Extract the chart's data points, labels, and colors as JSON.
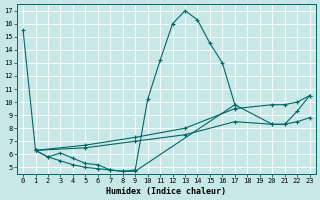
{
  "xlabel": "Humidex (Indice chaleur)",
  "bg_color": "#c8e8e8",
  "grid_color": "#b0d0d0",
  "line_color": "#006666",
  "xlim": [
    -0.5,
    23.5
  ],
  "ylim": [
    4.5,
    17.5
  ],
  "xticks": [
    0,
    1,
    2,
    3,
    4,
    5,
    6,
    7,
    8,
    9,
    10,
    11,
    12,
    13,
    14,
    15,
    16,
    17,
    18,
    19,
    20,
    21,
    22,
    23
  ],
  "yticks": [
    5,
    6,
    7,
    8,
    9,
    10,
    11,
    12,
    13,
    14,
    15,
    16,
    17
  ],
  "series": [
    {
      "x": [
        0,
        1,
        2,
        3,
        4,
        5,
        6,
        7,
        8,
        9,
        10,
        11,
        12,
        13,
        14,
        15,
        16,
        17
      ],
      "y": [
        15.5,
        6.3,
        5.8,
        6.1,
        5.7,
        5.3,
        5.2,
        4.8,
        4.7,
        4.8,
        10.2,
        13.2,
        16.0,
        17.0,
        16.3,
        14.5,
        13.0,
        9.8
      ]
    },
    {
      "x": [
        1,
        2,
        3,
        4,
        5,
        6,
        7,
        8,
        9,
        17,
        20,
        21,
        22,
        23
      ],
      "y": [
        6.3,
        5.8,
        5.5,
        5.2,
        5.0,
        4.9,
        4.8,
        4.7,
        4.7,
        9.8,
        8.3,
        8.3,
        9.3,
        10.5
      ]
    },
    {
      "x": [
        1,
        5,
        9,
        13,
        17,
        20,
        21,
        22,
        23
      ],
      "y": [
        6.3,
        6.7,
        7.3,
        8.0,
        9.5,
        9.8,
        9.8,
        10.0,
        10.5
      ]
    },
    {
      "x": [
        1,
        5,
        9,
        13,
        17,
        20,
        21,
        22,
        23
      ],
      "y": [
        6.3,
        6.5,
        7.0,
        7.5,
        8.5,
        8.3,
        8.3,
        8.5,
        8.8
      ]
    }
  ]
}
